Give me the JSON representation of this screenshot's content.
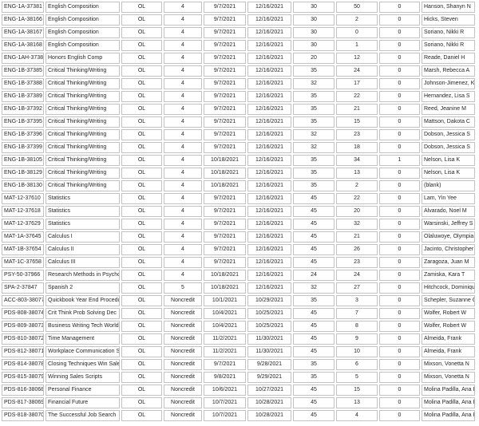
{
  "colors": {
    "background": "#ffffff",
    "cell_border": "#c2c2c2",
    "text": "#262626"
  },
  "table": {
    "rows": [
      [
        "ENG-1A-37381",
        "English Composition",
        "OL",
        "4",
        "9/7/2021",
        "12/16/2021",
        "30",
        "50",
        "0",
        "Hanson, Shanyn N"
      ],
      [
        "ENG-1A-38166",
        "English Composition",
        "OL",
        "4",
        "9/7/2021",
        "12/16/2021",
        "30",
        "2",
        "0",
        "Hicks, Steven"
      ],
      [
        "ENG-1A-38167",
        "English Composition",
        "OL",
        "4",
        "9/7/2021",
        "12/16/2021",
        "30",
        "0",
        "0",
        "Soriano, Nikki R"
      ],
      [
        "ENG-1A-38168",
        "English Composition",
        "OL",
        "4",
        "9/7/2021",
        "12/16/2021",
        "30",
        "1",
        "0",
        "Soriano, Nikki R"
      ],
      [
        "ENG-1AH-37382",
        "Honors English Comp",
        "OL",
        "4",
        "9/7/2021",
        "12/16/2021",
        "20",
        "12",
        "0",
        "Reade, Daniel H"
      ],
      [
        "ENG-1B-37385",
        "Critical Thinking/Writing",
        "OL",
        "4",
        "9/7/2021",
        "12/16/2021",
        "35",
        "24",
        "0",
        "Marsh, Rebecca A"
      ],
      [
        "ENG-1B-37388",
        "Critical Thinking/Writing",
        "OL",
        "4",
        "9/7/2021",
        "12/16/2021",
        "32",
        "17",
        "0",
        "Johnson-Jimenez, Kiandra S"
      ],
      [
        "ENG-1B-37389",
        "Critical Thinking/Writing",
        "OL",
        "4",
        "9/7/2021",
        "12/16/2021",
        "35",
        "22",
        "0",
        "Hernandez, Lisa S"
      ],
      [
        "ENG-1B-37392",
        "Critical Thinking/Writing",
        "OL",
        "4",
        "9/7/2021",
        "12/16/2021",
        "35",
        "21",
        "0",
        "Reed, Jeanine M"
      ],
      [
        "ENG-1B-37395",
        "Critical Thinking/Writing",
        "OL",
        "4",
        "9/7/2021",
        "12/16/2021",
        "35",
        "15",
        "0",
        "Mattson, Dakota C"
      ],
      [
        "ENG-1B-37396",
        "Critical Thinking/Writing",
        "OL",
        "4",
        "9/7/2021",
        "12/16/2021",
        "32",
        "23",
        "0",
        "Dobson, Jessica S"
      ],
      [
        "ENG-1B-37399",
        "Critical Thinking/Writing",
        "OL",
        "4",
        "9/7/2021",
        "12/16/2021",
        "32",
        "18",
        "0",
        "Dobson, Jessica S"
      ],
      [
        "ENG-1B-38105",
        "Critical Thinking/Writing",
        "OL",
        "4",
        "10/18/2021",
        "12/16/2021",
        "35",
        "34",
        "1",
        "Nelson, Lisa K"
      ],
      [
        "ENG-1B-38129",
        "Critical Thinking/Writing",
        "OL",
        "4",
        "10/18/2021",
        "12/16/2021",
        "35",
        "13",
        "0",
        "Nelson, Lisa K"
      ],
      [
        "ENG-1B-38130",
        "Critical Thinking/Writing",
        "OL",
        "4",
        "10/18/2021",
        "12/16/2021",
        "35",
        "2",
        "0",
        "(blank)"
      ],
      [
        "MAT-12-37610",
        "Statistics",
        "OL",
        "4",
        "9/7/2021",
        "12/16/2021",
        "45",
        "22",
        "0",
        "Lam, Yin Yee"
      ],
      [
        "MAT-12-37618",
        "Statistics",
        "OL",
        "4",
        "9/7/2021",
        "12/16/2021",
        "45",
        "20",
        "0",
        "Alvarado, Noel M"
      ],
      [
        "MAT-12-37629",
        "Statistics",
        "OL",
        "4",
        "9/7/2021",
        "12/16/2021",
        "45",
        "32",
        "0",
        "Warsinski, Jeffrey S"
      ],
      [
        "MAT-1A-37645",
        "Calculus I",
        "OL",
        "4",
        "9/7/2021",
        "12/16/2021",
        "45",
        "21",
        "0",
        "Olaluwoye, Olympia M"
      ],
      [
        "MAT-1B-37654",
        "Calculus II",
        "OL",
        "4",
        "9/7/2021",
        "12/16/2021",
        "45",
        "26",
        "0",
        "Jacinto, Christopher"
      ],
      [
        "MAT-1C-37658",
        "Calculus III",
        "OL",
        "4",
        "9/7/2021",
        "12/16/2021",
        "45",
        "23",
        "0",
        "Zaragoza, Juan M"
      ],
      [
        "PSY-50-37966",
        "Research Methods in Psychology",
        "OL",
        "4",
        "10/18/2021",
        "12/16/2021",
        "24",
        "24",
        "0",
        "Zamiska, Kara T"
      ],
      [
        "SPA-2-37847",
        "Spanish 2",
        "OL",
        "5",
        "10/18/2021",
        "12/16/2021",
        "32",
        "27",
        "0",
        "Hitchcock, Dominique M"
      ],
      [
        "ACC-803-38077",
        "Quickbook Year End Procedures",
        "OL",
        "Noncredit",
        "10/1/2021",
        "10/29/2021",
        "35",
        "3",
        "0",
        "Schepler, Suzanne G"
      ],
      [
        "PDS-808-38074",
        "Crit Think Prob Solving Dec",
        "OL",
        "Noncredit",
        "10/4/2021",
        "10/25/2021",
        "45",
        "7",
        "0",
        "Wolfer, Robert W"
      ],
      [
        "PDS-809-38073",
        "Business Writing Tech World",
        "OL",
        "Noncredit",
        "10/4/2021",
        "10/25/2021",
        "45",
        "8",
        "0",
        "Wolfer, Robert W"
      ],
      [
        "PDS-810-38072",
        "Time Management",
        "OL",
        "Noncredit",
        "11/2/2021",
        "11/30/2021",
        "45",
        "9",
        "0",
        "Almeida, Frank"
      ],
      [
        "PDS-812-38071",
        "Workplace Communication Strat",
        "OL",
        "Noncredit",
        "11/2/2021",
        "11/30/2021",
        "45",
        "10",
        "0",
        "Almeida, Frank"
      ],
      [
        "PDS-814-38078",
        "Closing Techniques Win Sale",
        "OL",
        "Noncredit",
        "9/7/2021",
        "9/28/2021",
        "35",
        "6",
        "0",
        "Mixson, Vonetta N"
      ],
      [
        "PDS-815-38079",
        "Winning Sales Scripts",
        "OL",
        "Noncredit",
        "9/8/2021",
        "9/29/2021",
        "35",
        "5",
        "0",
        "Mixson, Vonetta N"
      ],
      [
        "PDS-816-38068",
        "Personal Finance",
        "OL",
        "Noncredit",
        "10/6/2021",
        "10/27/2021",
        "45",
        "15",
        "0",
        "Molina Padilla, Ana H"
      ],
      [
        "PDS-817-38069",
        "Financial Future",
        "OL",
        "Noncredit",
        "10/7/2021",
        "10/28/2021",
        "45",
        "13",
        "0",
        "Molina Padilla, Ana H"
      ],
      [
        "PDS-818-38070",
        "The Successful Job Search",
        "OL",
        "Noncredit",
        "10/7/2021",
        "10/28/2021",
        "45",
        "4",
        "0",
        "Molina Padilla, Ana H"
      ]
    ]
  }
}
